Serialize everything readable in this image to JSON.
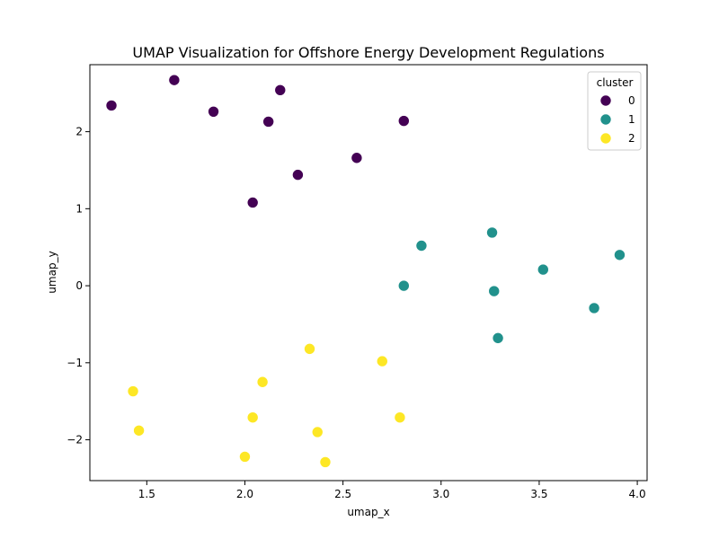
{
  "chart_data": {
    "type": "scatter",
    "title": "UMAP Visualization for Offshore Energy Development Regulations",
    "xlabel": "umap_x",
    "ylabel": "umap_y",
    "xlim": [
      1.21,
      4.05
    ],
    "ylim": [
      -2.53,
      2.87
    ],
    "xticks": [
      1.5,
      2.0,
      2.5,
      3.0,
      3.5,
      4.0
    ],
    "xtick_labels": [
      "1.5",
      "2.0",
      "2.5",
      "3.0",
      "3.5",
      "4.0"
    ],
    "yticks": [
      -2,
      -1,
      0,
      1,
      2
    ],
    "ytick_labels": [
      "−2",
      "−1",
      "0",
      "1",
      "2"
    ],
    "grid": false,
    "legend": {
      "title": "cluster",
      "placement": "top-right",
      "entries": [
        "0",
        "1",
        "2"
      ]
    },
    "colors": {
      "0": "#440154",
      "1": "#21918c",
      "2": "#fde725"
    },
    "series": [
      {
        "name": "0",
        "points": [
          {
            "x": 1.32,
            "y": 2.34
          },
          {
            "x": 1.64,
            "y": 2.67
          },
          {
            "x": 1.84,
            "y": 2.26
          },
          {
            "x": 2.18,
            "y": 2.54
          },
          {
            "x": 2.12,
            "y": 2.13
          },
          {
            "x": 2.81,
            "y": 2.14
          },
          {
            "x": 2.57,
            "y": 1.66
          },
          {
            "x": 2.27,
            "y": 1.44
          },
          {
            "x": 2.04,
            "y": 1.08
          }
        ]
      },
      {
        "name": "1",
        "points": [
          {
            "x": 2.9,
            "y": 0.52
          },
          {
            "x": 3.26,
            "y": 0.69
          },
          {
            "x": 3.91,
            "y": 0.4
          },
          {
            "x": 3.52,
            "y": 0.21
          },
          {
            "x": 2.81,
            "y": 0.0
          },
          {
            "x": 3.27,
            "y": -0.07
          },
          {
            "x": 3.78,
            "y": -0.29
          },
          {
            "x": 3.29,
            "y": -0.68
          }
        ]
      },
      {
        "name": "2",
        "points": [
          {
            "x": 2.33,
            "y": -0.82
          },
          {
            "x": 2.7,
            "y": -0.98
          },
          {
            "x": 1.43,
            "y": -1.37
          },
          {
            "x": 2.09,
            "y": -1.25
          },
          {
            "x": 2.04,
            "y": -1.71
          },
          {
            "x": 2.79,
            "y": -1.71
          },
          {
            "x": 1.46,
            "y": -1.88
          },
          {
            "x": 2.37,
            "y": -1.9
          },
          {
            "x": 2.0,
            "y": -2.22
          },
          {
            "x": 2.41,
            "y": -2.29
          }
        ]
      }
    ]
  }
}
